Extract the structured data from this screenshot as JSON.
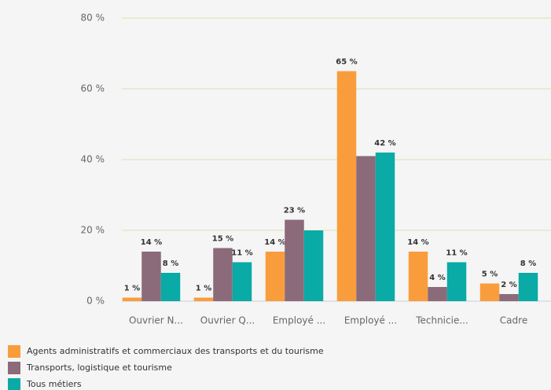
{
  "chart_data": {
    "type": "bar",
    "categories": [
      "Ouvrier N...",
      "Ouvrier Q...",
      "Employé ...",
      "Employé ...",
      "Technicie...",
      "Cadre"
    ],
    "series": [
      {
        "name": "Agents administratifs et commerciaux des transports et du tourisme",
        "color": "#f99d3c",
        "values": [
          1,
          1,
          14,
          65,
          14,
          5
        ],
        "value_labels": [
          "1 %",
          "1 %",
          "14 %",
          "65 %",
          "14 %",
          "5 %"
        ]
      },
      {
        "name": "Transports, logistique et tourisme",
        "color": "#8b6a7a",
        "values": [
          14,
          15,
          23,
          41,
          4,
          2
        ],
        "value_labels": [
          "14 %",
          "15 %",
          "23 %",
          null,
          "4 %",
          "2 %"
        ]
      },
      {
        "name": "Tous métiers",
        "color": "#0aaaa6",
        "values": [
          8,
          11,
          20,
          42,
          11,
          8
        ],
        "value_labels": [
          "8 %",
          "11 %",
          null,
          "42 %",
          "11 %",
          "8 %"
        ]
      }
    ],
    "ylim": [
      0,
      80
    ],
    "yticks": [
      {
        "value": 0,
        "label": "0 %"
      },
      {
        "value": 20,
        "label": "20 %"
      },
      {
        "value": 40,
        "label": "40 %"
      },
      {
        "value": 60,
        "label": "60 %"
      },
      {
        "value": 80,
        "label": "80 %"
      }
    ],
    "grid": true
  }
}
